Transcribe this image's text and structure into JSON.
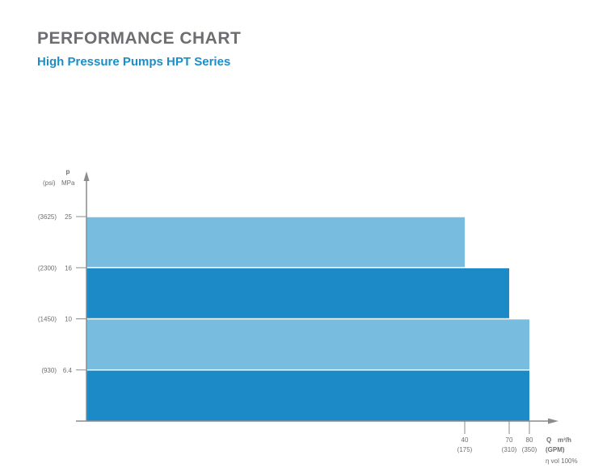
{
  "header": {
    "title": "PERFORMANCE CHART",
    "subtitle": "High Pressure Pumps HPT Series"
  },
  "colors": {
    "light_band": "#78bde0",
    "dark_band": "#1b8ac6",
    "axis": "#8a8c8e",
    "text": "#6d6e71",
    "subtitle": "#1b8ec8"
  },
  "chart_data": {
    "type": "bar",
    "orientation": "horizontal-step",
    "y_axis": {
      "symbol": "p",
      "unit_secondary": "(psi)",
      "unit_primary": "MPa",
      "ticks": [
        {
          "value": 25,
          "label": "25",
          "alt_label": "(3625)"
        },
        {
          "value": 16,
          "label": "16",
          "alt_label": "(2300)"
        },
        {
          "value": 10,
          "label": "10",
          "alt_label": "(1450)"
        },
        {
          "value": 6.4,
          "label": "6.4",
          "alt_label": "(930)"
        }
      ]
    },
    "x_axis": {
      "symbol": "Q",
      "unit_primary": "m³/h",
      "unit_secondary": "(GPM)",
      "note": "η vol 100%",
      "ticks": [
        {
          "value": 40,
          "label": "40",
          "alt_label": "(175)"
        },
        {
          "value": 70,
          "label": "70",
          "alt_label": "(310)"
        },
        {
          "value": 80,
          "label": "80",
          "alt_label": "(350)"
        }
      ]
    },
    "bands": [
      {
        "p_from": 16,
        "p_to": 25,
        "q_max": 40,
        "shade": "light"
      },
      {
        "p_from": 10,
        "p_to": 16,
        "q_max": 70,
        "shade": "dark"
      },
      {
        "p_from": 6.4,
        "p_to": 10,
        "q_max": 80,
        "shade": "light"
      },
      {
        "p_from": 0,
        "p_to": 6.4,
        "q_max": 80,
        "shade": "dark"
      }
    ]
  }
}
